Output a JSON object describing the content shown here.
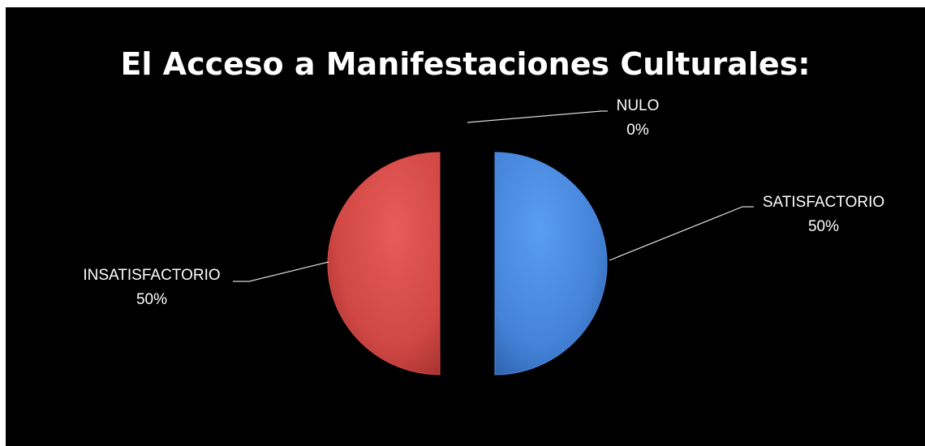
{
  "chart_data": {
    "type": "pie",
    "title": "El Acceso a Manifestaciones Culturales:",
    "slices": [
      {
        "label": "SATISFACTORIO",
        "value": 50,
        "display": "50%",
        "color": "#4a8be0"
      },
      {
        "label": "NULO",
        "value": 0,
        "display": "0%",
        "color": "#9bbb59"
      },
      {
        "label": "INSATISFACTORIO",
        "value": 50,
        "display": "50%",
        "color": "#d94a48"
      }
    ],
    "legend": "none",
    "background": "#000000"
  }
}
